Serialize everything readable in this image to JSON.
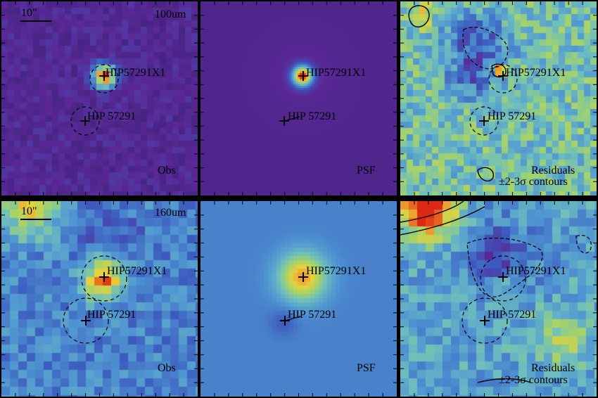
{
  "scale_label": "10\"",
  "source_primary": "HIP57291X1",
  "source_secondary": "HIP 57291",
  "rows": [
    {
      "band": "100um",
      "panels": [
        {
          "caption": "Obs",
          "caption2": ""
        },
        {
          "caption": "PSF",
          "caption2": ""
        },
        {
          "caption": "Residuals",
          "caption2": "±2-3σ contours"
        }
      ]
    },
    {
      "band": "160um",
      "panels": [
        {
          "caption": "Obs",
          "caption2": ""
        },
        {
          "caption": "PSF",
          "caption2": ""
        },
        {
          "caption": "Residuals",
          "caption2": "±2-3σ contours"
        }
      ]
    }
  ],
  "colors": {
    "background_map": "#4a2f8f",
    "psf_background_100": "#4b3a9a",
    "psf_background_160": "#5a96cc",
    "peak": "#d83a1e",
    "contour": "#000000"
  }
}
